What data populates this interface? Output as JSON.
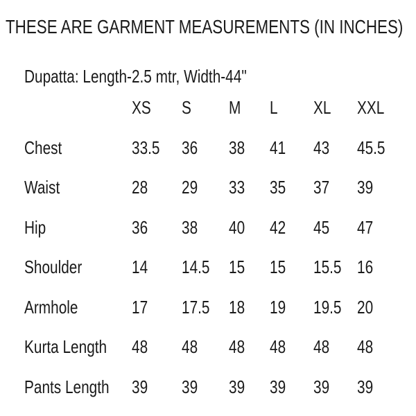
{
  "header": {
    "title": "THESE ARE GARMENT MEASUREMENTS (IN INCHES)",
    "subtitle": "Dupatta: Length-2.5 mtr, Width-44\""
  },
  "table": {
    "columns": [
      "XS",
      "S",
      "M",
      "L",
      "XL",
      "XXL"
    ],
    "rows": [
      {
        "label": "Chest",
        "values": [
          "33.5",
          "36",
          "38",
          "41",
          "43",
          "45.5"
        ]
      },
      {
        "label": "Waist",
        "values": [
          "28",
          "29",
          "33",
          "35",
          "37",
          "39"
        ]
      },
      {
        "label": "Hip",
        "values": [
          "36",
          "38",
          "40",
          "42",
          "45",
          "47"
        ]
      },
      {
        "label": "Shoulder",
        "values": [
          "14",
          "14.5",
          "15",
          "15",
          "15.5",
          "16"
        ]
      },
      {
        "label": "Armhole",
        "values": [
          "17",
          "17.5",
          "18",
          "19",
          "19.5",
          "20"
        ]
      },
      {
        "label": "Kurta Length",
        "values": [
          "48",
          "48",
          "48",
          "48",
          "48",
          "48"
        ]
      },
      {
        "label": "Pants Length",
        "values": [
          "39",
          "39",
          "39",
          "39",
          "39",
          "39"
        ]
      }
    ]
  },
  "colors": {
    "text": "#1a1a1a",
    "background": "#ffffff"
  }
}
